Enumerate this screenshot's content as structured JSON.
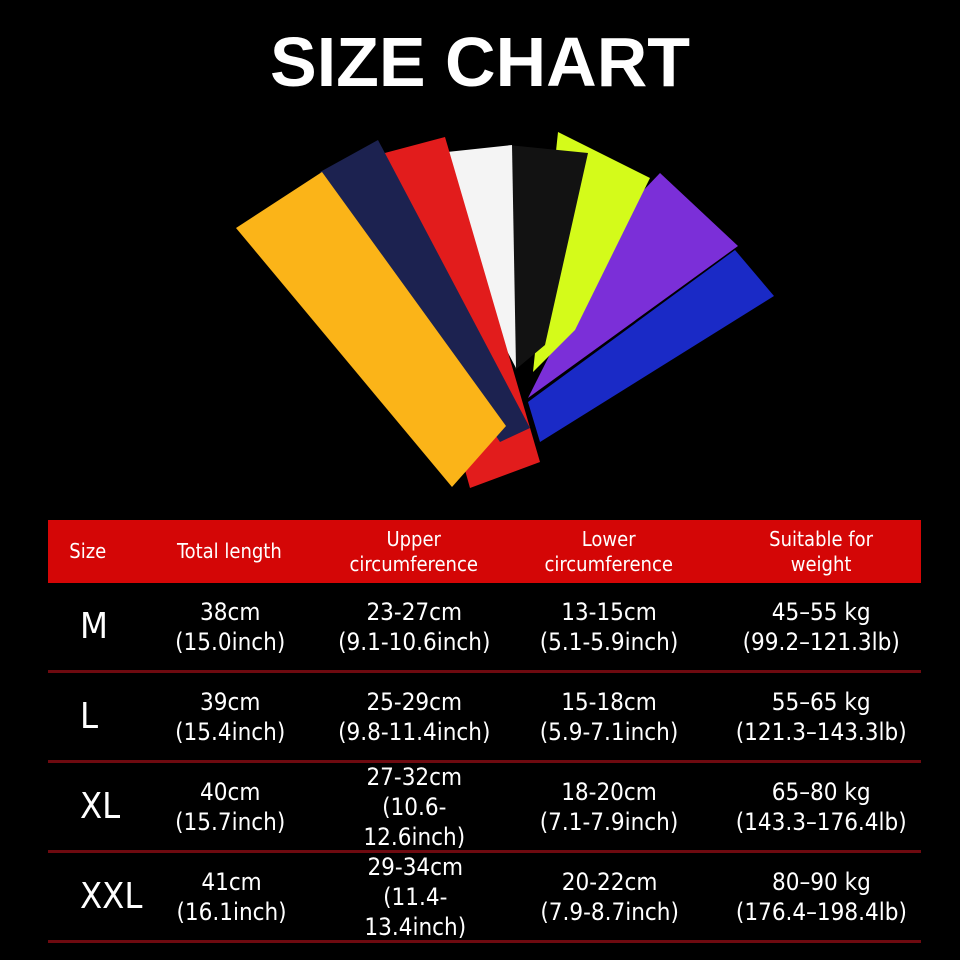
{
  "title": "SIZE CHART",
  "sleeve_colors": [
    "#fbb418",
    "#1c2250",
    "#e21c1c",
    "#f4f4f4",
    "#121212",
    "#d4fb1a",
    "#7b2fd8",
    "#1a2ac6"
  ],
  "table": {
    "header": [
      "Size",
      "Total length",
      "Upper circumference",
      "Lower circumference",
      "Suitable for weight"
    ],
    "header_lines": [
      [
        "Size"
      ],
      [
        "Total length"
      ],
      [
        "Upper",
        "circumference"
      ],
      [
        "Lower",
        "circumference"
      ],
      [
        "Suitable for",
        "weight"
      ]
    ],
    "header_color": "#d40606",
    "rows": [
      {
        "size": "M",
        "length": [
          "38cm",
          "(15.0inch)"
        ],
        "upper": [
          "23-27cm",
          "(9.1-10.6inch)"
        ],
        "lower": [
          "13-15cm",
          "(5.1-5.9inch)"
        ],
        "weight": [
          "45–55 kg",
          "(99.2–121.3lb)"
        ]
      },
      {
        "size": "L",
        "length": [
          "39cm",
          "(15.4inch)"
        ],
        "upper": [
          "25-29cm",
          "(9.8-11.4inch)"
        ],
        "lower": [
          "15-18cm",
          "(5.9-7.1inch)"
        ],
        "weight": [
          "55–65 kg",
          "(121.3–143.3lb)"
        ]
      },
      {
        "size": "XL",
        "length": [
          "40cm",
          "(15.7inch)"
        ],
        "upper": [
          "27-32cm",
          "(10.6-12.6inch)"
        ],
        "lower": [
          "18-20cm",
          "(7.1-7.9inch)"
        ],
        "weight": [
          "65–80 kg",
          "(143.3–176.4lb)"
        ]
      },
      {
        "size": "XXL",
        "length": [
          "41cm",
          "(16.1inch)"
        ],
        "upper": [
          "29-34cm",
          "(11.4-13.4inch)"
        ],
        "lower": [
          "20-22cm",
          "(7.9-8.7inch)"
        ],
        "weight": [
          "80–90 kg",
          "(176.4–198.4lb)"
        ]
      }
    ]
  }
}
